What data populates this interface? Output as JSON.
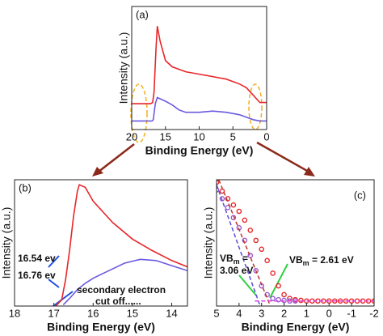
{
  "chart_data": [
    {
      "type": "line",
      "panel_label": "(a)",
      "xlabel": "Binding Energy (eV)",
      "ylabel": "Intensity (a.u.)",
      "xlim": [
        20,
        0
      ],
      "xticks": [
        20,
        15,
        10,
        5,
        0
      ],
      "ylim": [
        0,
        10
      ],
      "series": [
        {
          "color": "#e8262a",
          "x": [
            20,
            17.2,
            16.9,
            16.7,
            16.4,
            16.2,
            15.8,
            15,
            14,
            12,
            10,
            8,
            6,
            5,
            4,
            3,
            2,
            1,
            0
          ],
          "values": [
            2.1,
            2.1,
            2.2,
            3.0,
            6.6,
            8.4,
            7.2,
            5.6,
            5.1,
            4.7,
            4.5,
            4.3,
            4.1,
            3.9,
            3.7,
            3.4,
            2.8,
            2.2,
            2.2
          ]
        },
        {
          "color": "#6a5ae0",
          "x": [
            20,
            17,
            16.8,
            16.5,
            16.2,
            15.8,
            15,
            14,
            13,
            12,
            11,
            10,
            8,
            6,
            5,
            4,
            3,
            2,
            1,
            0
          ],
          "values": [
            0.7,
            0.7,
            0.8,
            2.1,
            2.6,
            2.5,
            2.3,
            2.0,
            1.6,
            1.4,
            1.4,
            1.4,
            1.5,
            1.4,
            1.3,
            1.2,
            1.0,
            0.8,
            0.7,
            0.7
          ]
        }
      ]
    },
    {
      "type": "line",
      "panel_label": "(b)",
      "xlabel": "Binding Energy (eV)",
      "ylabel": "Intensity (a.u.)",
      "xlim": [
        18,
        13.6
      ],
      "xticks": [
        18,
        17,
        16,
        15,
        14
      ],
      "ylim": [
        0,
        10
      ],
      "annotations": [
        "16.54 ev",
        "16.76 ev",
        "secondary electron",
        "cut off......"
      ],
      "series": [
        {
          "color": "#e8262a",
          "x": [
            16.95,
            16.8,
            16.7,
            16.6,
            16.5,
            16.4,
            16.35,
            16.2,
            16,
            15.5,
            15,
            14.5,
            14,
            13.6
          ],
          "values": [
            0,
            0.5,
            2.1,
            4.4,
            7.1,
            9.1,
            9.6,
            9.4,
            8.3,
            6.6,
            5.3,
            4.4,
            3.6,
            3.1
          ]
        },
        {
          "color": "#6a5ae0",
          "x": [
            16.76,
            16.6,
            16.4,
            16.2,
            16,
            15.6,
            15.2,
            14.8,
            14.4,
            14,
            13.6
          ],
          "values": [
            0.1,
            0.6,
            1.3,
            1.8,
            2.2,
            2.8,
            3.4,
            3.7,
            3.6,
            3.2,
            2.8
          ]
        }
      ]
    },
    {
      "type": "scatter",
      "panel_label": "(c)",
      "xlabel": "Binding Energy (eV)",
      "ylabel": "Intensity (a.u.)",
      "xlim": [
        5,
        -2
      ],
      "xticks": [
        5,
        4,
        3,
        2,
        1,
        0,
        -1,
        -2
      ],
      "ylim": [
        0,
        10
      ],
      "vbm_red": {
        "main": "VB",
        "sub": "m",
        "rest": " = 2.61 eV"
      },
      "vbm_blue": {
        "main": "VB",
        "sub": "m",
        "rest": " =",
        "line2": "3.06 eV"
      },
      "series": [
        {
          "color": "#e8262a",
          "x": [
            5,
            4.75,
            4.5,
            4.25,
            4,
            3.75,
            3.5,
            3.25,
            3,
            2.75,
            2.5,
            2.25,
            2,
            1.75,
            1.5,
            1.25,
            1,
            0.75,
            0.5,
            0.25,
            0,
            -0.25,
            -0.5,
            -0.75,
            -1,
            -1.25,
            -1.5,
            -1.75,
            -2
          ],
          "values": [
            9.8,
            9.1,
            8.5,
            8.0,
            7.5,
            6.8,
            6.0,
            5.2,
            4.5,
            3.6,
            2.6,
            1.6,
            0.9,
            0.6,
            0.5,
            0.45,
            0.4,
            0.4,
            0.4,
            0.4,
            0.4,
            0.4,
            0.4,
            0.4,
            0.4,
            0.4,
            0.4,
            0.4,
            0.4
          ]
        },
        {
          "color": "#9b59d0",
          "x": [
            5,
            4.75,
            4.5,
            4.25,
            4,
            3.75,
            3.5,
            3.25,
            3,
            2.75,
            2.5,
            2.25,
            2,
            1.75,
            1.5
          ],
          "values": [
            9.2,
            8.5,
            7.8,
            7.0,
            6.2,
            5.2,
            4.0,
            2.8,
            1.6,
            0.9,
            0.6,
            0.5,
            0.45,
            0.4,
            0.4
          ]
        },
        {
          "color": "#c0392b",
          "dashed": true,
          "x": [
            4.9,
            2.61
          ],
          "values": [
            10,
            0
          ]
        },
        {
          "color": "#5b4fd0",
          "dashed": true,
          "x": [
            5,
            3.06
          ],
          "values": [
            9.6,
            0
          ]
        },
        {
          "color": "#e040e0",
          "dashed": true,
          "x": [
            3.3,
            -2
          ],
          "values": [
            0.4,
            0.4
          ]
        }
      ]
    }
  ]
}
